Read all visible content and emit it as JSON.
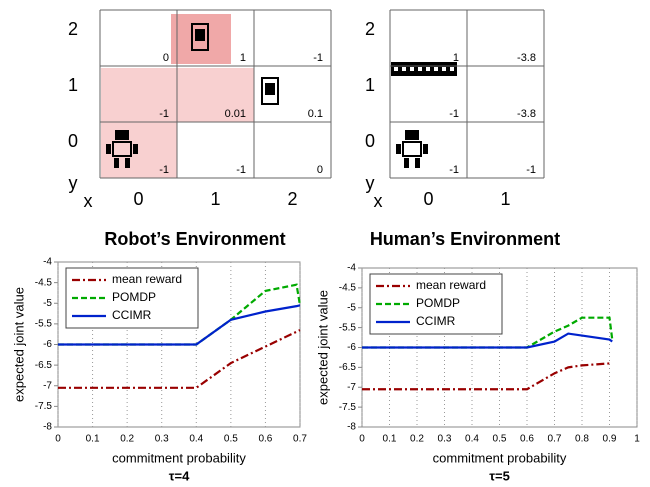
{
  "robot_grid": {
    "title": "Robot’s Environment",
    "x_label": "x",
    "y_label": "y",
    "row_labels": [
      "2",
      "1",
      "0"
    ],
    "col_labels": [
      "0",
      "1",
      "2"
    ],
    "cells": [
      [
        0,
        1,
        -1
      ],
      [
        -1,
        0.01,
        0.1
      ],
      [
        -1,
        -1,
        0
      ]
    ]
  },
  "human_grid": {
    "title": "Human’s Environment",
    "x_label": "x",
    "y_label": "y",
    "row_labels": [
      "2",
      "1",
      "0"
    ],
    "col_labels": [
      "0",
      "1"
    ],
    "cells": [
      [
        1,
        -3.8
      ],
      [
        -1,
        -3.8
      ],
      [
        -1,
        -1
      ]
    ]
  },
  "chart_data": [
    {
      "type": "line",
      "xlabel": "commitment probability",
      "ylabel": "expected joint value",
      "caption": "τ=4",
      "x": [
        0,
        0.4,
        0.5,
        0.6,
        0.69,
        0.7
      ],
      "xlim": [
        0,
        0.7
      ],
      "xticks": [
        0,
        0.1,
        0.2,
        0.3,
        0.4,
        0.5,
        0.6,
        0.7
      ],
      "ylim": [
        -8,
        -4
      ],
      "yticks": [
        -4,
        -4.5,
        -5,
        -5.5,
        -6,
        -6.5,
        -7,
        -7.5,
        -8
      ],
      "grid": true,
      "legend": "upper left",
      "series": [
        {
          "name": "mean reward",
          "color": "#990000",
          "dash": "dashdot",
          "values": [
            -7.05,
            -7.05,
            -6.45,
            -6.05,
            -5.69,
            -5.65
          ]
        },
        {
          "name": "POMDP",
          "color": "#00aa00",
          "dash": "dashed",
          "values": [
            -6,
            -6,
            -5.4,
            -4.7,
            -4.55,
            -5.05
          ]
        },
        {
          "name": "CCIMR",
          "color": "#0022cc",
          "dash": "solid",
          "values": [
            -6,
            -6,
            -5.4,
            -5.2,
            -5.07,
            -5.05
          ]
        }
      ]
    },
    {
      "type": "line",
      "xlabel": "commitment probability",
      "ylabel": "expected joint value",
      "caption": "τ=5",
      "x": [
        0,
        0.6,
        0.7,
        0.75,
        0.8,
        0.9,
        0.91
      ],
      "xlim": [
        0,
        1
      ],
      "xticks": [
        0,
        0.1,
        0.2,
        0.3,
        0.4,
        0.5,
        0.6,
        0.7,
        0.8,
        0.9,
        1
      ],
      "ylim": [
        -8,
        -4
      ],
      "yticks": [
        -4,
        -4.5,
        -5,
        -5.5,
        -6,
        -6.5,
        -7,
        -7.5,
        -8
      ],
      "grid": true,
      "legend": "upper left",
      "series": [
        {
          "name": "mean reward",
          "color": "#990000",
          "dash": "dashdot",
          "values": [
            -7.05,
            -7.05,
            -6.65,
            -6.5,
            -6.45,
            -6.4,
            -6.4
          ]
        },
        {
          "name": "POMDP",
          "color": "#00aa00",
          "dash": "dashed",
          "values": [
            -6,
            -6,
            -5.6,
            -5.45,
            -5.25,
            -5.25,
            -5.8
          ]
        },
        {
          "name": "CCIMR",
          "color": "#0022cc",
          "dash": "solid",
          "values": [
            -6,
            -6,
            -5.85,
            -5.65,
            -5.7,
            -5.8,
            -5.85
          ]
        }
      ]
    }
  ]
}
